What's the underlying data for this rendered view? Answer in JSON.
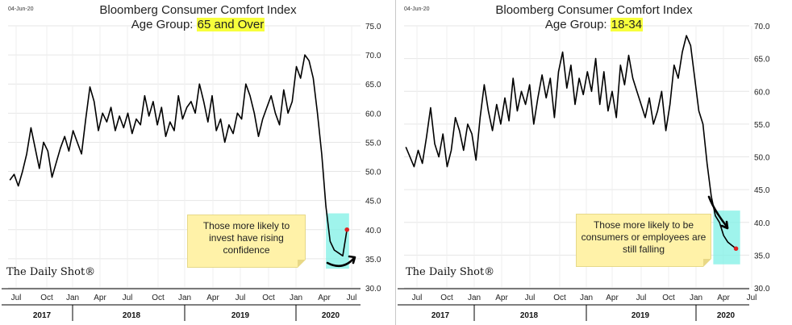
{
  "panels": [
    {
      "date_stamp": "04-Jun-20",
      "title": "Bloomberg Consumer Comfort Index",
      "subtitle_prefix": "Age Group: ",
      "subtitle_highlight": "65 and Over",
      "annotation": "Those more likely to invest have rising confidence",
      "brand": "The Daily Shot®"
    },
    {
      "date_stamp": "04-Jun-20",
      "title": "Bloomberg Consumer Comfort Index",
      "subtitle_prefix": "Age Group: ",
      "subtitle_highlight": "18-34",
      "annotation": "Those more likely to be consumers or employees are still falling",
      "brand": "The Daily Shot®"
    }
  ],
  "chart_data": [
    {
      "type": "line",
      "title": "Bloomberg Consumer Comfort Index",
      "subtitle": "Age Group: 65 and Over",
      "ylim": [
        30,
        75
      ],
      "yticks": [
        "30.0",
        "35.0",
        "40.0",
        "45.0",
        "50.0",
        "55.0",
        "60.0",
        "65.0",
        "70.0",
        "75.0"
      ],
      "x_month_labels": [
        "Jul",
        "Oct",
        "Jan",
        "Apr",
        "Jul",
        "Oct",
        "Jan",
        "Apr",
        "Jul",
        "Oct",
        "Jan",
        "Apr",
        "Jul"
      ],
      "x_year_labels": [
        "2017",
        "2018",
        "2019",
        "2020"
      ],
      "x_range": [
        "2017-05",
        "2020-07"
      ],
      "grid": true,
      "line_color": "#000000",
      "highlight_color": "#7ff0e6",
      "end_marker_color": "#e02020",
      "series": [
        {
          "x": [
            "2017-05-07",
            "2017-05-21",
            "2017-06-04",
            "2017-06-18",
            "2017-07-02",
            "2017-07-16",
            "2017-07-30",
            "2017-08-13",
            "2017-08-27",
            "2017-09-10",
            "2017-09-24",
            "2017-10-08",
            "2017-10-22",
            "2017-11-05",
            "2017-11-19",
            "2017-12-03",
            "2017-12-17",
            "2017-12-31",
            "2018-01-14",
            "2018-01-28",
            "2018-02-11",
            "2018-02-25",
            "2018-03-11",
            "2018-03-25",
            "2018-04-08",
            "2018-04-22",
            "2018-05-06",
            "2018-05-20",
            "2018-06-03",
            "2018-06-17",
            "2018-07-01",
            "2018-07-15",
            "2018-07-29",
            "2018-08-12",
            "2018-08-26",
            "2018-09-09",
            "2018-09-23",
            "2018-10-07",
            "2018-10-21",
            "2018-11-04",
            "2018-11-18",
            "2018-12-02",
            "2018-12-16",
            "2018-12-30",
            "2019-01-13",
            "2019-01-27",
            "2019-02-10",
            "2019-02-24",
            "2019-03-10",
            "2019-03-24",
            "2019-04-07",
            "2019-04-21",
            "2019-05-05",
            "2019-05-19",
            "2019-06-02",
            "2019-06-16",
            "2019-06-30",
            "2019-07-14",
            "2019-07-28",
            "2019-08-11",
            "2019-08-25",
            "2019-09-08",
            "2019-09-22",
            "2019-10-06",
            "2019-10-20",
            "2019-11-03",
            "2019-11-17",
            "2019-12-01",
            "2019-12-15",
            "2019-12-29",
            "2020-01-12",
            "2020-01-26",
            "2020-02-09",
            "2020-02-23",
            "2020-03-08",
            "2020-03-22",
            "2020-04-05",
            "2020-04-19",
            "2020-05-03",
            "2020-05-17",
            "2020-05-31"
          ],
          "y": [
            48.5,
            49.5,
            47.5,
            50,
            53,
            57.5,
            54,
            50.5,
            55,
            53.5,
            49,
            51.5,
            54,
            56,
            53.5,
            57,
            55,
            53,
            59,
            64.5,
            62,
            57,
            60,
            58.5,
            61,
            57,
            59.5,
            57.5,
            60,
            56.5,
            59,
            58,
            63,
            59.5,
            62,
            58,
            61,
            56,
            58.5,
            57,
            63,
            59,
            61,
            62,
            60,
            65,
            62,
            58.5,
            63,
            57,
            59,
            55,
            58,
            56.5,
            60,
            59,
            65,
            63,
            60,
            56,
            59,
            61,
            63,
            60,
            58,
            64,
            60,
            62,
            68,
            66,
            70,
            69,
            66,
            60,
            53,
            44,
            38,
            36.5,
            36,
            35.5,
            40
          ]
        }
      ]
    },
    {
      "type": "line",
      "title": "Bloomberg Consumer Comfort Index",
      "subtitle": "Age Group: 18-34",
      "ylim": [
        30,
        70
      ],
      "yticks": [
        "30.0",
        "35.0",
        "40.0",
        "45.0",
        "50.0",
        "55.0",
        "60.0",
        "65.0",
        "70.0"
      ],
      "x_month_labels": [
        "Jul",
        "Oct",
        "Jan",
        "Apr",
        "Jul",
        "Oct",
        "Jan",
        "Apr",
        "Jul",
        "Oct",
        "Jan",
        "Apr",
        "Jul"
      ],
      "x_year_labels": [
        "2017",
        "2018",
        "2019",
        "2020"
      ],
      "x_range": [
        "2017-05",
        "2020-07"
      ],
      "grid": true,
      "line_color": "#000000",
      "highlight_color": "#7ff0e6",
      "end_marker_color": "#e02020",
      "series": [
        {
          "x": [
            "2017-05-07",
            "2017-05-21",
            "2017-06-04",
            "2017-06-18",
            "2017-07-02",
            "2017-07-16",
            "2017-07-30",
            "2017-08-13",
            "2017-08-27",
            "2017-09-10",
            "2017-09-24",
            "2017-10-08",
            "2017-10-22",
            "2017-11-05",
            "2017-11-19",
            "2017-12-03",
            "2017-12-17",
            "2017-12-31",
            "2018-01-14",
            "2018-01-28",
            "2018-02-11",
            "2018-02-25",
            "2018-03-11",
            "2018-03-25",
            "2018-04-08",
            "2018-04-22",
            "2018-05-06",
            "2018-05-20",
            "2018-06-03",
            "2018-06-17",
            "2018-07-01",
            "2018-07-15",
            "2018-07-29",
            "2018-08-12",
            "2018-08-26",
            "2018-09-09",
            "2018-09-23",
            "2018-10-07",
            "2018-10-21",
            "2018-11-04",
            "2018-11-18",
            "2018-12-02",
            "2018-12-16",
            "2018-12-30",
            "2019-01-13",
            "2019-01-27",
            "2019-02-10",
            "2019-02-24",
            "2019-03-10",
            "2019-03-24",
            "2019-04-07",
            "2019-04-21",
            "2019-05-05",
            "2019-05-19",
            "2019-06-02",
            "2019-06-16",
            "2019-06-30",
            "2019-07-14",
            "2019-07-28",
            "2019-08-11",
            "2019-08-25",
            "2019-09-08",
            "2019-09-22",
            "2019-10-06",
            "2019-10-20",
            "2019-11-03",
            "2019-11-17",
            "2019-12-01",
            "2019-12-15",
            "2019-12-29",
            "2020-01-12",
            "2020-01-26",
            "2020-02-09",
            "2020-02-23",
            "2020-03-08",
            "2020-03-22",
            "2020-04-05",
            "2020-04-19",
            "2020-05-03",
            "2020-05-17",
            "2020-05-31"
          ],
          "y": [
            51.5,
            50,
            48.5,
            51,
            49,
            53,
            57.5,
            52,
            50,
            53.5,
            48.5,
            51,
            56,
            54,
            51,
            55,
            53.5,
            49.5,
            56,
            61,
            57,
            54,
            58,
            55,
            59,
            55.5,
            62,
            57,
            60,
            58,
            61,
            55,
            59,
            62.5,
            59,
            62,
            56,
            63,
            66,
            60.5,
            64,
            58,
            62,
            59.5,
            63,
            60,
            65,
            58,
            63,
            57,
            60,
            56,
            64,
            61,
            65.5,
            62,
            60,
            58,
            56,
            59,
            55,
            57,
            60,
            54,
            58,
            64,
            62,
            66,
            68.5,
            67,
            62,
            57,
            55,
            49,
            44,
            41,
            40,
            38,
            37,
            36.5,
            36
          ]
        }
      ]
    }
  ]
}
